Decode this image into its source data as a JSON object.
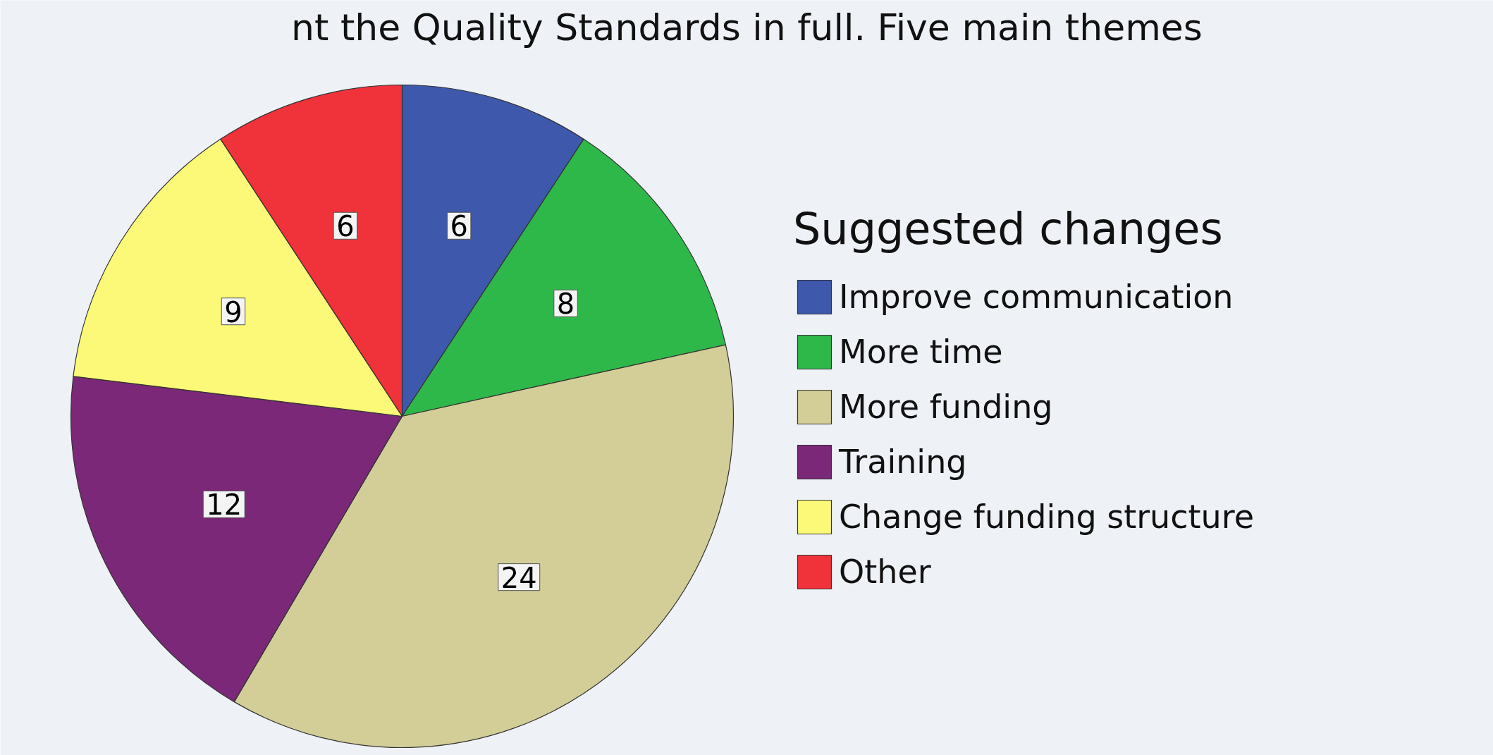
{
  "chart_data": {
    "type": "pie",
    "annotations": [
      "nt the Quality Standards in full. Five main themes"
    ],
    "legend_title": "Suggested changes",
    "categories": [
      "Improve communication",
      "More time",
      "More funding",
      "Training",
      "Change funding structure",
      "Other"
    ],
    "values": [
      6,
      8,
      24,
      12,
      9,
      6
    ],
    "colors": [
      "#3e58ac",
      "#2fb84a",
      "#d3ce98",
      "#7b2878",
      "#fbf977",
      "#f0323a"
    ],
    "data_labels": true,
    "legend": "right"
  }
}
